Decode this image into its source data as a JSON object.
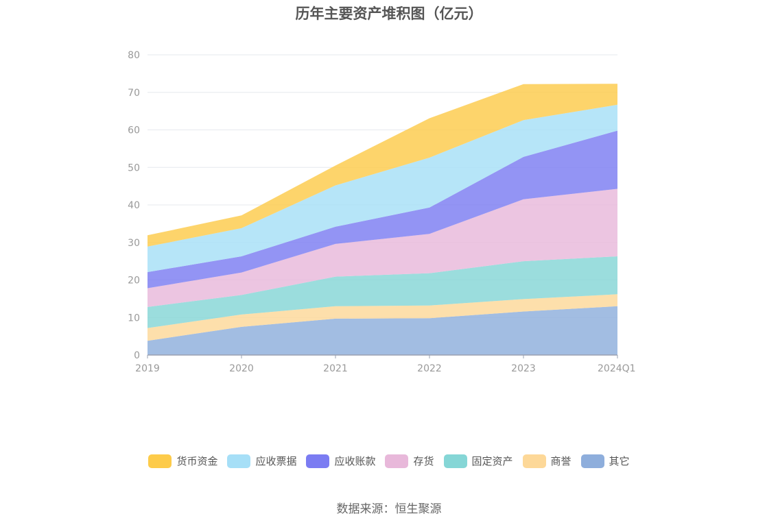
{
  "chart_data": {
    "type": "area",
    "stacked": true,
    "title": "历年主要资产堆积图（亿元）",
    "categories": [
      "2019",
      "2020",
      "2021",
      "2022",
      "2023",
      "2024Q1"
    ],
    "ylim": [
      0,
      80
    ],
    "yticks": [
      0,
      10,
      20,
      30,
      40,
      50,
      60,
      70,
      80
    ],
    "grid": true,
    "legend_position": "bottom",
    "series": [
      {
        "name": "其它",
        "color": "#8eaedc",
        "values": [
          3.8,
          7.5,
          9.7,
          9.8,
          11.6,
          13.0
        ]
      },
      {
        "name": "商誉",
        "color": "#fdd898",
        "values": [
          3.4,
          3.3,
          3.3,
          3.4,
          3.3,
          3.2
        ]
      },
      {
        "name": "固定资产",
        "color": "#85d6d6",
        "values": [
          5.6,
          5.2,
          7.9,
          8.6,
          10.1,
          10.1
        ]
      },
      {
        "name": "存货",
        "color": "#e8b8da",
        "values": [
          5.0,
          6.0,
          8.7,
          10.5,
          16.5,
          18.0
        ]
      },
      {
        "name": "应收账款",
        "color": "#7b7cf2",
        "values": [
          4.3,
          4.3,
          4.6,
          7.0,
          11.3,
          15.5
        ]
      },
      {
        "name": "应收票据",
        "color": "#a6dff7",
        "values": [
          6.8,
          7.5,
          11.0,
          13.3,
          9.8,
          6.9
        ]
      },
      {
        "name": "货币资金",
        "color": "#fdcb4a",
        "values": [
          3.0,
          3.4,
          5.3,
          10.5,
          9.6,
          5.6
        ]
      }
    ]
  },
  "legend_order": [
    "货币资金",
    "应收票据",
    "应收账款",
    "存货",
    "固定资产",
    "商誉",
    "其它"
  ],
  "source": "数据来源：恒生聚源"
}
